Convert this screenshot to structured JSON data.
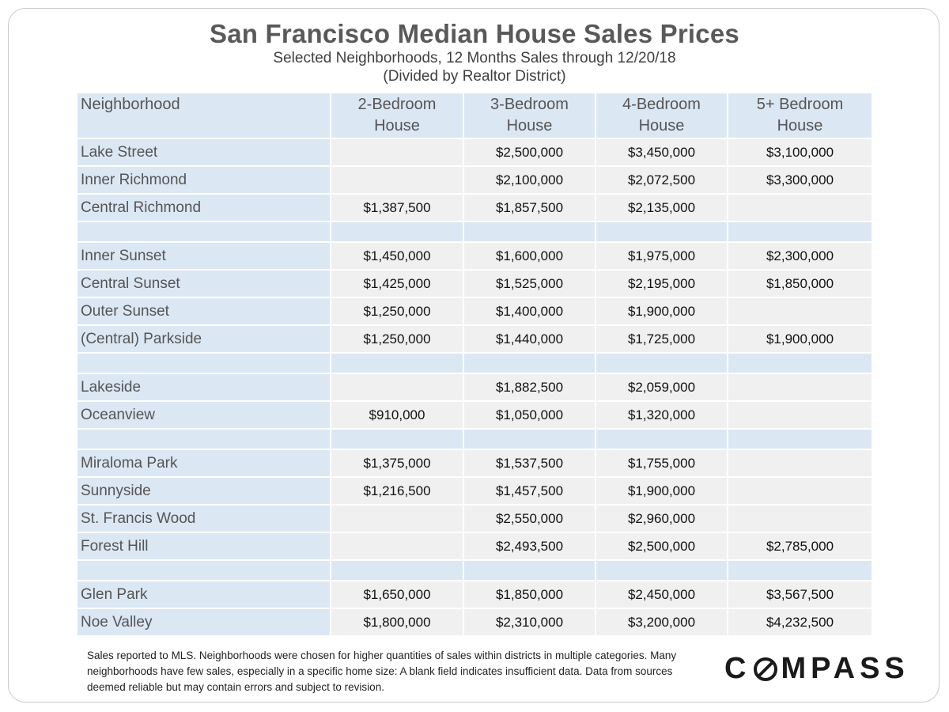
{
  "title": "San Francisco Median House Sales Prices",
  "subtitle_line1": "Selected Neighborhoods, 12 Months Sales through 12/20/18",
  "subtitle_line2": "(Divided by Realtor District)",
  "chart_data": {
    "type": "table",
    "columns": [
      "Neighborhood",
      "2-Bedroom House",
      "3-Bedroom House",
      "4-Bedroom House",
      "5+ Bedroom House"
    ],
    "groups": [
      {
        "rows": [
          {
            "name": "Lake Street",
            "values": [
              "",
              "$2,500,000",
              "$3,450,000",
              "$3,100,000"
            ]
          },
          {
            "name": "Inner Richmond",
            "values": [
              "",
              "$2,100,000",
              "$2,072,500",
              "$3,300,000"
            ]
          },
          {
            "name": "Central Richmond",
            "values": [
              "$1,387,500",
              "$1,857,500",
              "$2,135,000",
              ""
            ]
          }
        ]
      },
      {
        "rows": [
          {
            "name": "Inner Sunset",
            "values": [
              "$1,450,000",
              "$1,600,000",
              "$1,975,000",
              "$2,300,000"
            ]
          },
          {
            "name": "Central Sunset",
            "values": [
              "$1,425,000",
              "$1,525,000",
              "$2,195,000",
              "$1,850,000"
            ]
          },
          {
            "name": "Outer Sunset",
            "values": [
              "$1,250,000",
              "$1,400,000",
              "$1,900,000",
              ""
            ]
          },
          {
            "name": "(Central) Parkside",
            "values": [
              "$1,250,000",
              "$1,440,000",
              "$1,725,000",
              "$1,900,000"
            ]
          }
        ]
      },
      {
        "rows": [
          {
            "name": "Lakeside",
            "values": [
              "",
              "$1,882,500",
              "$2,059,000",
              ""
            ]
          },
          {
            "name": "Oceanview",
            "values": [
              "$910,000",
              "$1,050,000",
              "$1,320,000",
              ""
            ]
          }
        ]
      },
      {
        "rows": [
          {
            "name": "Miraloma Park",
            "values": [
              "$1,375,000",
              "$1,537,500",
              "$1,755,000",
              ""
            ]
          },
          {
            "name": "Sunnyside",
            "values": [
              "$1,216,500",
              "$1,457,500",
              "$1,900,000",
              ""
            ]
          },
          {
            "name": "St. Francis Wood",
            "values": [
              "",
              "$2,550,000",
              "$2,960,000",
              ""
            ]
          },
          {
            "name": "Forest Hill",
            "values": [
              "",
              "$2,493,500",
              "$2,500,000",
              "$2,785,000"
            ]
          }
        ]
      },
      {
        "rows": [
          {
            "name": "Glen Park",
            "values": [
              "$1,650,000",
              "$1,850,000",
              "$2,450,000",
              "$3,567,500"
            ]
          },
          {
            "name": "Noe Valley",
            "values": [
              "$1,800,000",
              "$2,310,000",
              "$3,200,000",
              "$4,232,500"
            ]
          }
        ]
      }
    ]
  },
  "footnote": "Sales reported to MLS. Neighborhoods were chosen for higher quantities of sales within districts in multiple categories. Many neighborhoods have few sales, especially in a specific home size: A blank field indicates insufficient data. Data from sources deemed  reliable but may contain errors and subject to revision.",
  "logo": {
    "before": "C",
    "after": "MPASS",
    "full_text": "COMPASS"
  },
  "colors": {
    "header_blue": "#dce7f4",
    "cell_gray": "#f0f0f0",
    "title_gray": "#595959"
  }
}
